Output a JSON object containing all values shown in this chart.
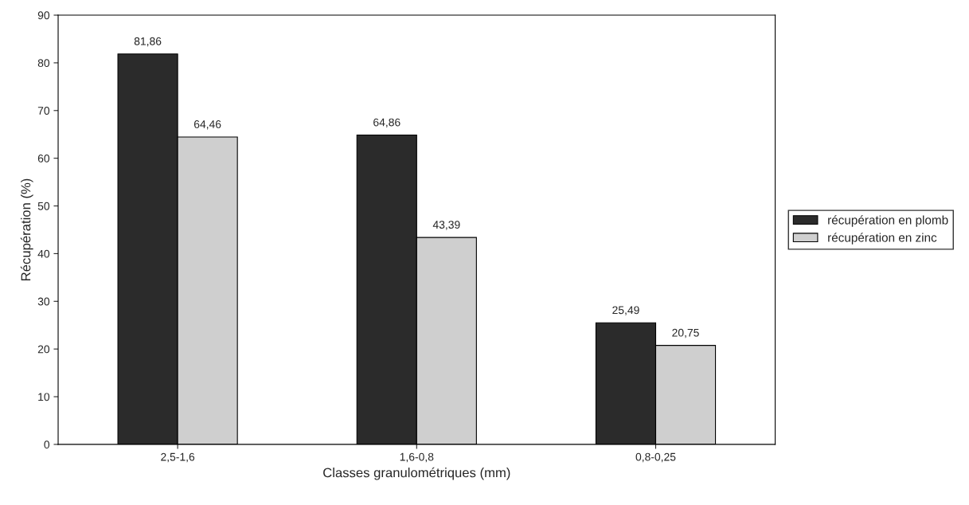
{
  "chart_data": {
    "type": "bar",
    "xlabel": "Classes granulométriques (mm)",
    "ylabel": "Récupération (%)",
    "categories": [
      "2,5-1,6",
      "1,6-0,8",
      "0,8-0,25"
    ],
    "series": [
      {
        "name": "récupération en plomb",
        "color": "#2b2b2b",
        "values": [
          81.86,
          64.86,
          25.49
        ],
        "value_labels": [
          "81,86",
          "64,86",
          "25,49"
        ]
      },
      {
        "name": "récupération en zinc",
        "color": "#cfcfcf",
        "values": [
          64.46,
          43.39,
          20.75
        ],
        "value_labels": [
          "64,46",
          "43,39",
          "20,75"
        ]
      }
    ],
    "ylim": [
      0,
      90
    ],
    "yticks": [
      0,
      10,
      20,
      30,
      40,
      50,
      60,
      70,
      80,
      90
    ],
    "grid": false,
    "legend": "right"
  }
}
